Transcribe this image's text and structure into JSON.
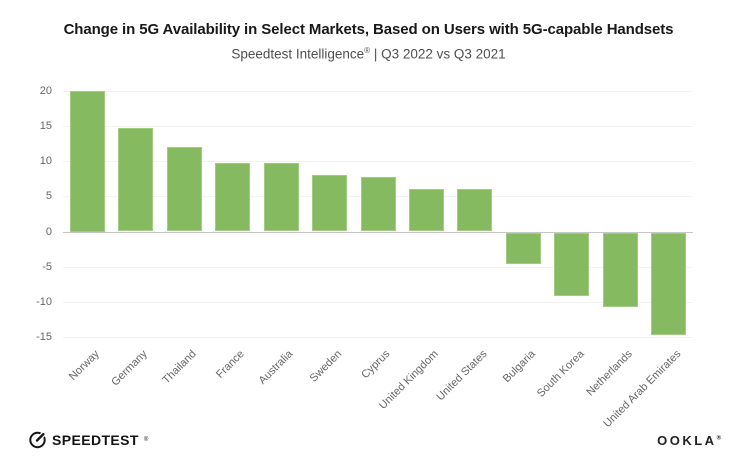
{
  "header": {
    "title": "Change in 5G Availability in Select Markets, Based on Users with 5G-capable Handsets",
    "subtitle_brand": "Speedtest Intelligence",
    "subtitle_reg": "®",
    "subtitle_period": " | Q3 2022 vs Q3 2021"
  },
  "chart_data": {
    "type": "bar",
    "title": "Change in 5G Availability in Select Markets, Based on Users with 5G-capable Handsets",
    "subtitle": "Speedtest Intelligence® | Q3 2022 vs Q3 2021",
    "categories": [
      "Norway",
      "Germany",
      "Thailand",
      "France",
      "Australia",
      "Sweden",
      "Cyprus",
      "United Kingdom",
      "United States",
      "Bulgaria",
      "South Korea",
      "Netherlands",
      "United Arab Emirates"
    ],
    "values": [
      20.0,
      14.7,
      12.0,
      9.7,
      9.7,
      8.0,
      7.8,
      6.0,
      6.0,
      -4.5,
      -9.0,
      -10.5,
      -14.5
    ],
    "yticks": [
      20,
      15,
      10,
      5,
      0,
      -5,
      -10,
      -15
    ],
    "ylim": [
      -15,
      20
    ],
    "xlabel": "",
    "ylabel": "",
    "grid": true,
    "legend_position": "none",
    "bar_color": "#86ba60",
    "axis_label_color": "#666666",
    "zero_line_color": "#c7c7c7"
  },
  "footer": {
    "speedtest_label": "SPEEDTEST",
    "speedtest_reg": "®",
    "ookla_label": "OOKLA",
    "ookla_reg": "®"
  }
}
